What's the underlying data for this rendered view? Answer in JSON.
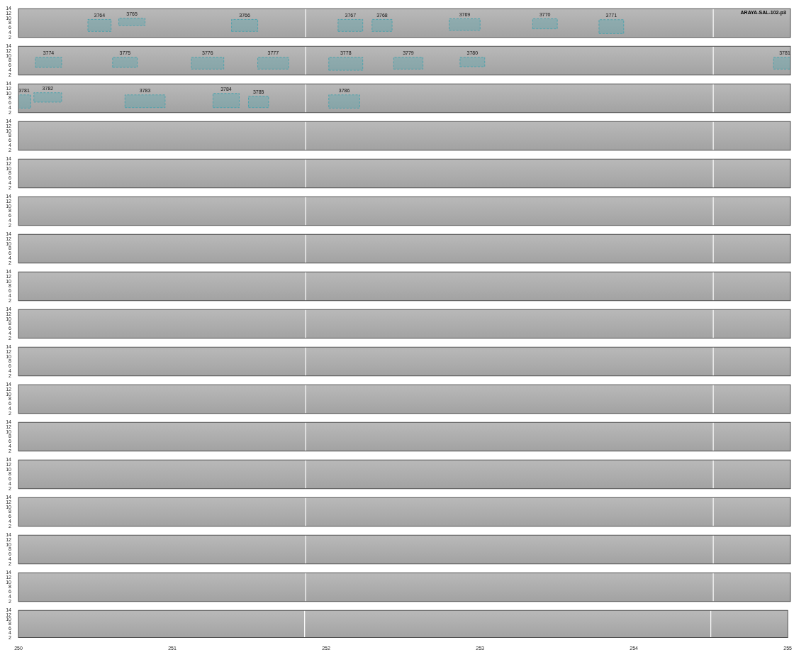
{
  "chart_data": [
    {
      "type": "spectrogram",
      "title": "ARAYA-SAL-102-p3",
      "xlim": [
        250,
        255
      ],
      "xticks": [
        250,
        251,
        252,
        253,
        254,
        255
      ],
      "ylim": [
        2,
        14
      ],
      "yticks": [
        2,
        4,
        6,
        8,
        10,
        12,
        14
      ],
      "tick_labels": "y",
      "color": "#4fa3ad",
      "vlines": [
        251.86,
        254.5
      ],
      "boxes": [
        {
          "label": "3764",
          "x": [
            250.45,
            250.6
          ],
          "y": [
            4.5,
            9.5
          ]
        },
        {
          "label": "3765",
          "x": [
            250.65,
            250.82
          ],
          "y": [
            7,
            10
          ]
        },
        {
          "label": "3766",
          "x": [
            251.38,
            251.55
          ],
          "y": [
            4.5,
            9.5
          ]
        },
        {
          "label": "3767",
          "x": [
            252.07,
            252.23
          ],
          "y": [
            4.5,
            9.5
          ]
        },
        {
          "label": "3768",
          "x": [
            252.29,
            252.42
          ],
          "y": [
            4.5,
            9.5
          ]
        },
        {
          "label": "3769",
          "x": [
            252.79,
            252.99
          ],
          "y": [
            5,
            9.8
          ]
        },
        {
          "label": "3770",
          "x": [
            253.33,
            253.49
          ],
          "y": [
            5.6,
            9.8
          ]
        },
        {
          "label": "3771",
          "x": [
            253.76,
            253.92
          ],
          "y": [
            3.6,
            9.4
          ]
        }
      ]
    },
    {
      "type": "spectrogram",
      "xlim": [
        250,
        255
      ],
      "xticks": [
        250,
        251,
        252,
        253,
        254,
        255
      ],
      "ylim": [
        2,
        14
      ],
      "yticks": [
        2,
        4,
        6,
        8,
        10,
        12,
        14
      ],
      "tick_labels": "y",
      "color": "#4fa3ad",
      "vlines": [
        251.86,
        254.5
      ],
      "boxes": [
        {
          "label": "3774",
          "x": [
            250.11,
            250.28
          ],
          "y": [
            5.2,
            9.4
          ]
        },
        {
          "label": "3775",
          "x": [
            250.61,
            250.77
          ],
          "y": [
            5.2,
            9.4
          ]
        },
        {
          "label": "3776",
          "x": [
            251.12,
            251.33
          ],
          "y": [
            4.5,
            9.4
          ]
        },
        {
          "label": "3777",
          "x": [
            251.55,
            251.75
          ],
          "y": [
            4.5,
            9.4
          ]
        },
        {
          "label": "3778",
          "x": [
            252.01,
            252.23
          ],
          "y": [
            4,
            9.4
          ]
        },
        {
          "label": "3779",
          "x": [
            252.43,
            252.62
          ],
          "y": [
            4.5,
            9.4
          ]
        },
        {
          "label": "3780",
          "x": [
            252.86,
            253.02
          ],
          "y": [
            5.5,
            9.4
          ]
        },
        {
          "label": "3781",
          "x": [
            254.89,
            255.1
          ],
          "y": [
            4.5,
            9.4
          ]
        }
      ]
    },
    {
      "type": "spectrogram",
      "xlim": [
        250,
        255
      ],
      "xticks": [
        250,
        251,
        252,
        253,
        254,
        255
      ],
      "ylim": [
        2,
        14
      ],
      "yticks": [
        2,
        4,
        6,
        8,
        10,
        12,
        14
      ],
      "tick_labels": "y",
      "color": "#4fa3ad",
      "vlines": [
        251.86,
        254.5
      ],
      "boxes": [
        {
          "label": "3781",
          "x": [
            249.9,
            250.08
          ],
          "y": [
            3.9,
            9.4
          ]
        },
        {
          "label": "3782",
          "x": [
            250.1,
            250.28
          ],
          "y": [
            6.4,
            10.3
          ]
        },
        {
          "label": "3783",
          "x": [
            250.69,
            250.95
          ],
          "y": [
            4.1,
            9.4
          ]
        },
        {
          "label": "3784",
          "x": [
            251.26,
            251.43
          ],
          "y": [
            4.1,
            10
          ]
        },
        {
          "label": "3785",
          "x": [
            251.49,
            251.62
          ],
          "y": [
            4.1,
            8.9
          ]
        },
        {
          "label": "3786",
          "x": [
            252.01,
            252.21
          ],
          "y": [
            3.9,
            9.4
          ]
        }
      ]
    },
    {
      "type": "spectrogram",
      "xlim": [
        250,
        255
      ],
      "xticks": [
        250,
        251,
        252,
        253,
        254,
        255
      ],
      "ylim": [
        2,
        14
      ],
      "yticks": [
        2,
        4,
        6,
        8,
        10,
        12,
        14
      ],
      "tick_labels": "y",
      "color": "#4fa3ad",
      "vlines": [
        251.86,
        254.5
      ],
      "boxes": []
    },
    {
      "type": "spectrogram",
      "xlim": [
        250,
        255
      ],
      "xticks": [
        250,
        251,
        252,
        253,
        254,
        255
      ],
      "ylim": [
        2,
        14
      ],
      "yticks": [
        2,
        4,
        6,
        8,
        10,
        12,
        14
      ],
      "tick_labels": "y",
      "color": "#4fa3ad",
      "vlines": [
        251.86,
        254.5
      ],
      "boxes": []
    },
    {
      "type": "spectrogram",
      "xlim": [
        250,
        255
      ],
      "xticks": [
        250,
        251,
        252,
        253,
        254,
        255
      ],
      "ylim": [
        2,
        14
      ],
      "yticks": [
        2,
        4,
        6,
        8,
        10,
        12,
        14
      ],
      "tick_labels": "y",
      "color": "#4fa3ad",
      "vlines": [
        251.86,
        254.5
      ],
      "boxes": []
    },
    {
      "type": "spectrogram",
      "xlim": [
        250,
        255
      ],
      "xticks": [
        250,
        251,
        252,
        253,
        254,
        255
      ],
      "ylim": [
        2,
        14
      ],
      "yticks": [
        2,
        4,
        6,
        8,
        10,
        12,
        14
      ],
      "tick_labels": "y",
      "color": "#4fa3ad",
      "vlines": [
        251.86,
        254.5
      ],
      "boxes": []
    },
    {
      "type": "spectrogram",
      "xlim": [
        250,
        255
      ],
      "xticks": [
        250,
        251,
        252,
        253,
        254,
        255
      ],
      "ylim": [
        2,
        14
      ],
      "yticks": [
        2,
        4,
        6,
        8,
        10,
        12,
        14
      ],
      "tick_labels": "y",
      "color": "#4fa3ad",
      "vlines": [
        251.86,
        254.5
      ],
      "boxes": []
    },
    {
      "type": "spectrogram",
      "xlim": [
        250,
        255
      ],
      "xticks": [
        250,
        251,
        252,
        253,
        254,
        255
      ],
      "ylim": [
        2,
        14
      ],
      "yticks": [
        2,
        4,
        6,
        8,
        10,
        12,
        14
      ],
      "tick_labels": "y",
      "color": "#4fa3ad",
      "vlines": [
        251.86,
        254.5
      ],
      "boxes": []
    },
    {
      "type": "spectrogram",
      "xlim": [
        250,
        255
      ],
      "xticks": [
        250,
        251,
        252,
        253,
        254,
        255
      ],
      "ylim": [
        2,
        14
      ],
      "yticks": [
        2,
        4,
        6,
        8,
        10,
        12,
        14
      ],
      "tick_labels": "y",
      "color": "#4fa3ad",
      "vlines": [
        251.86,
        254.5
      ],
      "boxes": []
    },
    {
      "type": "spectrogram",
      "xlim": [
        250,
        255
      ],
      "xticks": [
        250,
        251,
        252,
        253,
        254,
        255
      ],
      "ylim": [
        2,
        14
      ],
      "yticks": [
        2,
        4,
        6,
        8,
        10,
        12,
        14
      ],
      "tick_labels": "y",
      "color": "#4fa3ad",
      "vlines": [
        251.86,
        254.5
      ],
      "boxes": []
    },
    {
      "type": "spectrogram",
      "xlim": [
        250,
        255
      ],
      "xticks": [
        250,
        251,
        252,
        253,
        254,
        255
      ],
      "ylim": [
        2,
        14
      ],
      "yticks": [
        2,
        4,
        6,
        8,
        10,
        12,
        14
      ],
      "tick_labels": "y",
      "color": "#4fa3ad",
      "vlines": [
        251.86,
        254.5
      ],
      "boxes": []
    },
    {
      "type": "spectrogram",
      "xlim": [
        250,
        255
      ],
      "xticks": [
        250,
        251,
        252,
        253,
        254,
        255
      ],
      "ylim": [
        2,
        14
      ],
      "yticks": [
        2,
        4,
        6,
        8,
        10,
        12,
        14
      ],
      "tick_labels": "y",
      "color": "#4fa3ad",
      "vlines": [
        251.86,
        254.5
      ],
      "boxes": []
    },
    {
      "type": "spectrogram",
      "xlim": [
        250,
        255
      ],
      "xticks": [
        250,
        251,
        252,
        253,
        254,
        255
      ],
      "ylim": [
        2,
        14
      ],
      "yticks": [
        2,
        4,
        6,
        8,
        10,
        12,
        14
      ],
      "tick_labels": "y",
      "color": "#4fa3ad",
      "vlines": [
        251.86,
        254.5
      ],
      "boxes": []
    },
    {
      "type": "spectrogram",
      "xlim": [
        250,
        255
      ],
      "xticks": [
        250,
        251,
        252,
        253,
        254,
        255
      ],
      "ylim": [
        2,
        14
      ],
      "yticks": [
        2,
        4,
        6,
        8,
        10,
        12,
        14
      ],
      "tick_labels": "y",
      "color": "#4fa3ad",
      "vlines": [
        251.86,
        254.5
      ],
      "boxes": []
    },
    {
      "type": "spectrogram",
      "xlim": [
        250,
        255
      ],
      "xticks": [
        250,
        251,
        252,
        253,
        254,
        255
      ],
      "ylim": [
        2,
        14
      ],
      "yticks": [
        2,
        4,
        6,
        8,
        10,
        12,
        14
      ],
      "tick_labels": "y",
      "color": "#4fa3ad",
      "vlines": [
        251.86,
        254.5
      ],
      "boxes": []
    },
    {
      "type": "spectrogram",
      "xlim": [
        250,
        255
      ],
      "xticks": [
        250,
        251,
        252,
        253,
        254,
        255
      ],
      "ylim": [
        2,
        14
      ],
      "yticks": [
        2,
        4,
        6,
        8,
        10,
        12,
        14
      ],
      "color": "#4fa3ad",
      "vlines": [
        251.86,
        254.5
      ],
      "boxes": []
    }
  ]
}
